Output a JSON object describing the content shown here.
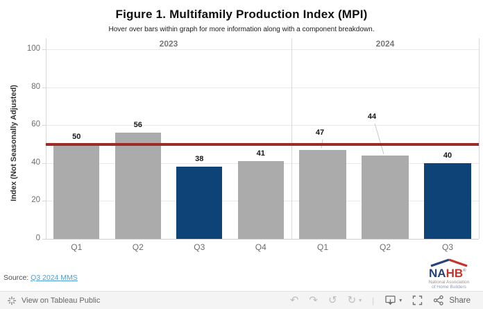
{
  "title": "Figure 1. Multifamily Production Index (MPI)",
  "subtitle": "Hover over bars within graph for more information along with a component breakdown.",
  "chart_data": {
    "type": "bar",
    "title": "Figure 1. Multifamily Production Index (MPI)",
    "xlabel": "",
    "ylabel": "Index (Not Seasonally Adjusted)",
    "ylim": [
      0,
      100
    ],
    "yticks": [
      0,
      20,
      40,
      60,
      80,
      100
    ],
    "grid": "horizontal",
    "reference_line": {
      "value": 50,
      "color": "#9e2b25"
    },
    "colors": {
      "bar": "#ababab",
      "highlight": "#0e4378"
    },
    "groups": [
      {
        "year": "2023",
        "categories": [
          "Q1",
          "Q2",
          "Q3",
          "Q4"
        ],
        "values": [
          50,
          56,
          38,
          41
        ],
        "highlight": [
          false,
          false,
          true,
          false
        ]
      },
      {
        "year": "2024",
        "categories": [
          "Q1",
          "Q2",
          "Q3"
        ],
        "values": [
          47,
          44,
          40
        ],
        "highlight": [
          false,
          false,
          true
        ]
      }
    ],
    "annotations": [
      {
        "group": 1,
        "index": 0,
        "label_dx": -4,
        "label_lift": 17
      },
      {
        "group": 1,
        "index": 1,
        "label_dx": -19,
        "label_lift": 48
      }
    ]
  },
  "source": {
    "prefix": "Source: ",
    "link_text": "Q3 2024 MMS"
  },
  "logo": {
    "name_left": "NA",
    "name_right": "HB",
    "reg": "®",
    "tagline1": "National Association",
    "tagline2": "of Home Builders"
  },
  "toolbar": {
    "view_label": "View on Tableau Public",
    "share_label": "Share",
    "icons": {
      "undo": "↶",
      "redo": "↷",
      "reset": "↺",
      "refresh": "↻",
      "caret": "▾",
      "separator": "|"
    }
  }
}
